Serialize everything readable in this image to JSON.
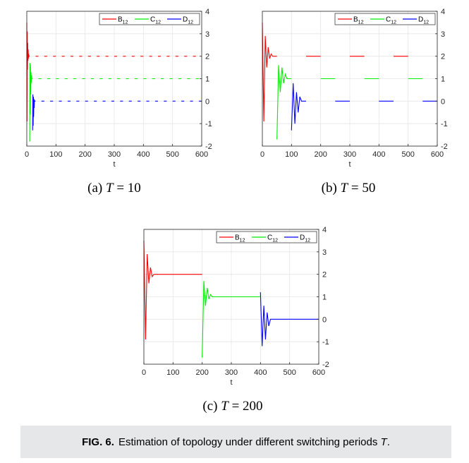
{
  "colors": {
    "B12": "#ff0000",
    "C12": "#00ee00",
    "D12": "#0000ff"
  },
  "figure_caption": {
    "label": "FIG. 6.",
    "text_before": "Estimation of topology under different switching periods",
    "symbol": "T",
    "text_after": "."
  },
  "chart_data": [
    {
      "type": "line",
      "caption": {
        "prefix": "(a)",
        "symbol": "T",
        "value": "= 10"
      },
      "xlabel": "t",
      "xlim": [
        0,
        600
      ],
      "ylim": [
        -2,
        4
      ],
      "xticks": [
        "0",
        "100",
        "200",
        "300",
        "400",
        "500",
        "600"
      ],
      "yticks": [
        "-2",
        "-1",
        "0",
        "1",
        "2",
        "3",
        "4"
      ],
      "grid": true,
      "legend": {
        "placement": "top-right",
        "entries": [
          "B",
          "C",
          "D"
        ],
        "subscript": "12"
      },
      "switching_period": 10,
      "series": [
        {
          "name": "B12",
          "steady_value": 2,
          "first_active": 0,
          "transient": [
            3.5,
            -0.9,
            3.1,
            1.4,
            2.6,
            1.8,
            2.3,
            1.9,
            2.1,
            2.0
          ]
        },
        {
          "name": "C12",
          "steady_value": 1,
          "first_active": 10,
          "transient": [
            -1.8,
            1.7,
            -0.6,
            1.6,
            0.3,
            1.3,
            0.8,
            1.15,
            1.0
          ]
        },
        {
          "name": "D12",
          "steady_value": 0,
          "first_active": 20,
          "transient": [
            -1.3,
            0.3,
            -1.1,
            0.2,
            -0.7,
            0.1,
            -0.3,
            0.05,
            0.0
          ]
        }
      ]
    },
    {
      "type": "line",
      "caption": {
        "prefix": "(b)",
        "symbol": "T",
        "value": "= 50"
      },
      "xlabel": "t",
      "xlim": [
        0,
        600
      ],
      "ylim": [
        -2,
        4
      ],
      "xticks": [
        "0",
        "100",
        "200",
        "300",
        "400",
        "500",
        "600"
      ],
      "yticks": [
        "-2",
        "-1",
        "0",
        "1",
        "2",
        "3",
        "4"
      ],
      "grid": true,
      "legend": {
        "placement": "top-right",
        "entries": [
          "B",
          "C",
          "D"
        ],
        "subscript": "12"
      },
      "switching_period": 50,
      "series": [
        {
          "name": "B12",
          "steady_value": 2,
          "first_active": 0,
          "transient": [
            3.5,
            -0.9,
            2.9,
            1.5,
            2.4,
            1.9,
            2.1,
            2.0
          ]
        },
        {
          "name": "C12",
          "steady_value": 1,
          "first_active": 50,
          "transient": [
            -1.7,
            1.6,
            0.4,
            1.5,
            0.8,
            1.2,
            1.0
          ]
        },
        {
          "name": "D12",
          "steady_value": 0,
          "first_active": 100,
          "transient": [
            -1.3,
            0.8,
            -1.0,
            0.4,
            -0.5,
            0.2,
            0.0
          ]
        }
      ]
    },
    {
      "type": "line",
      "caption": {
        "prefix": "(c)",
        "symbol": "T",
        "value": "= 200"
      },
      "xlabel": "t",
      "xlim": [
        0,
        600
      ],
      "ylim": [
        -2,
        4
      ],
      "xticks": [
        "0",
        "100",
        "200",
        "300",
        "400",
        "500",
        "600"
      ],
      "yticks": [
        "-2",
        "-1",
        "0",
        "1",
        "2",
        "3",
        "4"
      ],
      "grid": true,
      "legend": {
        "placement": "top-right",
        "entries": [
          "B",
          "C",
          "D"
        ],
        "subscript": "12"
      },
      "switching_period": 200,
      "series": [
        {
          "name": "B12",
          "steady_value": 2,
          "first_active": 0,
          "transient": [
            3.5,
            -0.9,
            2.9,
            1.6,
            2.3,
            1.9,
            2.0
          ]
        },
        {
          "name": "C12",
          "steady_value": 1,
          "first_active": 200,
          "transient": [
            -1.7,
            1.7,
            0.6,
            1.4,
            0.9,
            1.1,
            1.0
          ]
        },
        {
          "name": "D12",
          "steady_value": 0,
          "first_active": 400,
          "transient": [
            1.2,
            -1.2,
            0.6,
            -0.9,
            0.3,
            -0.3,
            0.0
          ]
        }
      ]
    }
  ]
}
